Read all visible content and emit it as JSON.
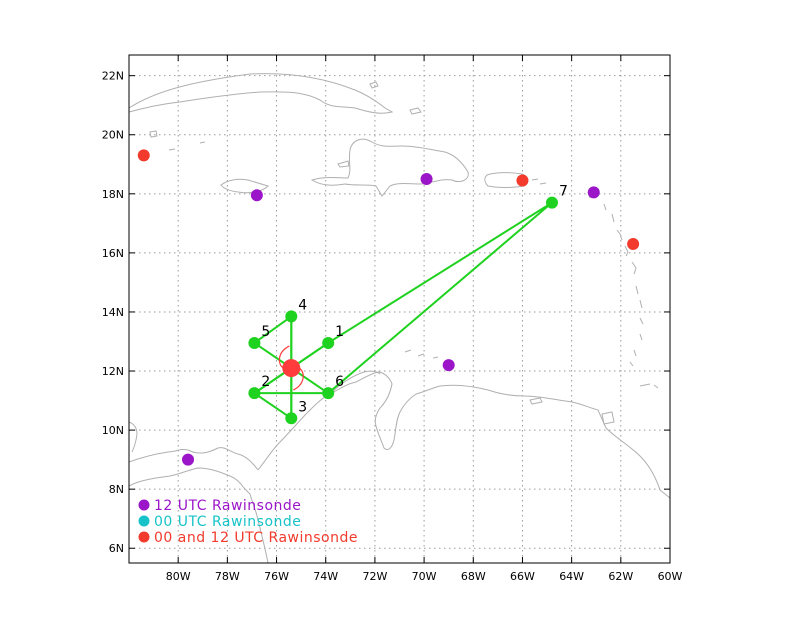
{
  "map": {
    "lon_range": [
      -82,
      -60
    ],
    "lat_range": [
      5.5,
      22.7
    ],
    "lon_ticks": [
      -80,
      -78,
      -76,
      -74,
      -72,
      -70,
      -68,
      -66,
      -64,
      -62,
      -60
    ],
    "lat_ticks": [
      6,
      8,
      10,
      12,
      14,
      16,
      18,
      20,
      22
    ],
    "lon_labels": [
      "80W",
      "78W",
      "76W",
      "74W",
      "72W",
      "70W",
      "68W",
      "66W",
      "64W",
      "62W",
      "60W"
    ],
    "lat_labels": [
      "6N",
      "8N",
      "10N",
      "12N",
      "14N",
      "16N",
      "18N",
      "20N",
      "22N"
    ],
    "grid": true,
    "gridline_color": "#9a9a9a",
    "coastline_color": "#b0b0b0"
  },
  "colors": {
    "track": "#1fd21f",
    "center": "#ff3b3b",
    "rawin_12": "#9b16c8",
    "rawin_00": "#17c3c8",
    "rawin_00_12": "#f23a2d"
  },
  "center": {
    "lon": -75.4,
    "lat": 12.1
  },
  "flight_points": [
    {
      "label": "1",
      "lon": -73.9,
      "lat": 12.95
    },
    {
      "label": "2",
      "lon": -76.9,
      "lat": 11.25
    },
    {
      "label": "3",
      "lon": -75.4,
      "lat": 10.4
    },
    {
      "label": "4",
      "lon": -75.4,
      "lat": 13.85
    },
    {
      "label": "5",
      "lon": -76.9,
      "lat": 12.95
    },
    {
      "label": "6",
      "lon": -73.9,
      "lat": 11.25
    },
    {
      "label": "7",
      "lon": -64.8,
      "lat": 17.7
    }
  ],
  "flight_track": [
    "5",
    "4",
    "3",
    "2",
    "6",
    "7",
    "1",
    "2"
  ],
  "spokes": [
    [
      "4",
      "3"
    ],
    [
      "5",
      "6"
    ],
    [
      "1",
      "2"
    ]
  ],
  "rawinsondes": [
    {
      "type": "12",
      "lon": -76.8,
      "lat": 17.95
    },
    {
      "type": "12",
      "lon": -69.9,
      "lat": 18.5
    },
    {
      "type": "12",
      "lon": -63.1,
      "lat": 18.05
    },
    {
      "type": "12",
      "lon": -69.0,
      "lat": 12.2
    },
    {
      "type": "12",
      "lon": -79.6,
      "lat": 9.0
    },
    {
      "type": "00_12",
      "lon": -81.4,
      "lat": 19.3
    },
    {
      "type": "00_12",
      "lon": -66.0,
      "lat": 18.45
    },
    {
      "type": "00_12",
      "lon": -61.5,
      "lat": 16.3
    }
  ],
  "legend": [
    {
      "text": "12 UTC Rawinsonde",
      "color": "#9b16c8"
    },
    {
      "text": "00 UTC Rawinsonde",
      "color": "#17c3c8"
    },
    {
      "text": "00 and 12 UTC Rawinsonde",
      "color": "#f23a2d"
    }
  ]
}
